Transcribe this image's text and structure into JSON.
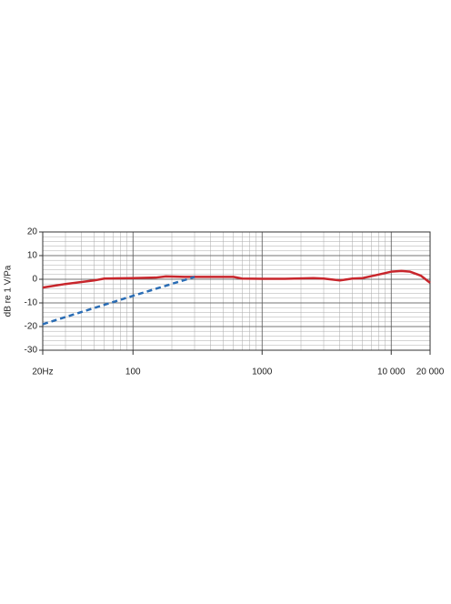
{
  "chart_data": {
    "type": "line",
    "y_label": "dB re 1 V/Pa",
    "log_x": true,
    "grid": true,
    "xlim": [
      20,
      20000
    ],
    "xticks": [
      {
        "value": 20,
        "label": "20Hz"
      },
      100,
      1000,
      {
        "value": 10000,
        "label": "10 000"
      },
      {
        "value": 20000,
        "label": "20 000"
      }
    ],
    "ylim": [
      -30,
      20
    ],
    "yticks": [
      20,
      10,
      0,
      -10,
      -20,
      -30
    ],
    "series": [
      {
        "color": "#c8262c",
        "dashed": false,
        "x": [
          20,
          30,
          50,
          60,
          100,
          150,
          180,
          250,
          400,
          600,
          700,
          1000,
          1500,
          2500,
          3000,
          4000,
          5000,
          6000,
          8000,
          10000,
          12000,
          14000,
          17000,
          20000
        ],
        "values": [
          -3.5,
          -2,
          -0.5,
          0.3,
          0.5,
          0.7,
          1.2,
          1,
          1,
          1,
          0.3,
          0.2,
          0.2,
          0.5,
          0.3,
          -0.5,
          0.3,
          0.5,
          2,
          3.2,
          3.5,
          3.2,
          1.5,
          -1.5
        ]
      },
      {
        "color": "#2a6db5",
        "dashed": true,
        "x": [
          20,
          100,
          300
        ],
        "values": [
          -19,
          -7,
          1
        ]
      }
    ]
  }
}
